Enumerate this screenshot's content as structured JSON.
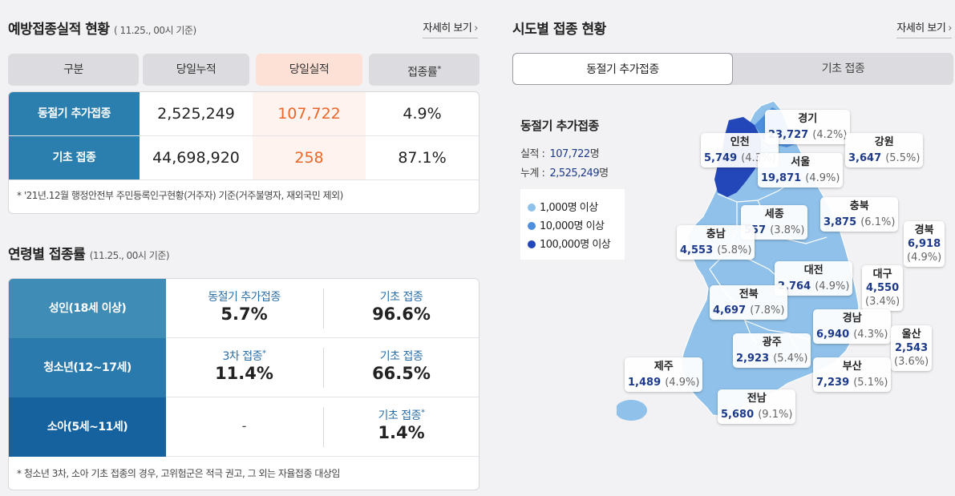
{
  "vaccination": {
    "title": "예방접종실적 현황",
    "subtitle": "( 11.25., 00시 기준)",
    "more": "자세히 보기",
    "columns": [
      "구분",
      "당일누적",
      "당일실적",
      "접종률"
    ],
    "rate_mark": "*",
    "rows": [
      {
        "label": "동절기 추가접종",
        "cumulative": "2,525,249",
        "today": "107,722",
        "rate": "4.9%"
      },
      {
        "label": "기초 접종",
        "cumulative": "44,698,920",
        "today": "258",
        "rate": "87.1%"
      }
    ],
    "note": "* '21년.12월 행정안전부 주민등록인구현황(거주자) 기준(거주불명자, 재외국민 제외)"
  },
  "age": {
    "title": "연령별 접종률",
    "subtitle": "(11.25., 00시 기준)",
    "rows": [
      {
        "label": "성인(18세 이상)",
        "a_key": "동절기 추가접종",
        "a_mark": "",
        "a_val": "5.7%",
        "b_key": "기초 접종",
        "b_mark": "",
        "b_val": "96.6%"
      },
      {
        "label": "청소년(12~17세)",
        "a_key": "3차 접종",
        "a_mark": "*",
        "a_val": "11.4%",
        "b_key": "기초 접종",
        "b_mark": "",
        "b_val": "66.5%"
      },
      {
        "label": "소아(5세~11세)",
        "a_dash": "-",
        "b_key": "기초 접종",
        "b_mark": "*",
        "b_val": "1.4%"
      }
    ],
    "note": "* 청소년 3차, 소아 기초 접종의 경우, 고위험군은 적극 권고, 그 외는 자율접종 대상임"
  },
  "region": {
    "title": "시도별 접종 현황",
    "more": "자세히 보기",
    "tabs": [
      {
        "label": "동절기 추가접종",
        "active": true
      },
      {
        "label": "기초 접종",
        "active": false
      }
    ],
    "info_title": "동절기 추가접종",
    "today_label": "실적 :",
    "today_value": "107,722",
    "total_label": "누계 :",
    "total_value": "2,525,249",
    "unit": "명",
    "legend": [
      {
        "label": "1,000명 이상",
        "color": "#8fc1ea"
      },
      {
        "label": "10,000명 이상",
        "color": "#4d8fdc"
      },
      {
        "label": "100,000명 이상",
        "color": "#2346b8"
      }
    ],
    "provinces": [
      {
        "name": "경기",
        "value": "23,727",
        "pct": "(4.2%)"
      },
      {
        "name": "인천",
        "value": "5,749",
        "pct": "(4.3%)"
      },
      {
        "name": "강원",
        "value": "3,647",
        "pct": "(5.5%)"
      },
      {
        "name": "서울",
        "value": "19,871",
        "pct": "(4.9%)"
      },
      {
        "name": "세종",
        "value": "557",
        "pct": "(3.8%)"
      },
      {
        "name": "충북",
        "value": "3,875",
        "pct": "(6.1%)"
      },
      {
        "name": "충남",
        "value": "4,553",
        "pct": "(5.8%)"
      },
      {
        "name": "경북",
        "value": "6,918",
        "pct": "(4.9%)"
      },
      {
        "name": "대전",
        "value": "2,764",
        "pct": "(4.9%)"
      },
      {
        "name": "대구",
        "value": "4,550",
        "pct": "(3.4%)"
      },
      {
        "name": "전북",
        "value": "4,697",
        "pct": "(7.8%)"
      },
      {
        "name": "경남",
        "value": "6,940",
        "pct": "(4.3%)"
      },
      {
        "name": "울산",
        "value": "2,543",
        "pct": "(3.6%)"
      },
      {
        "name": "광주",
        "value": "2,923",
        "pct": "(5.4%)"
      },
      {
        "name": "제주",
        "value": "1,489",
        "pct": "(4.9%)"
      },
      {
        "name": "부산",
        "value": "7,239",
        "pct": "(5.1%)"
      },
      {
        "name": "전남",
        "value": "5,680",
        "pct": "(9.1%)"
      }
    ]
  }
}
